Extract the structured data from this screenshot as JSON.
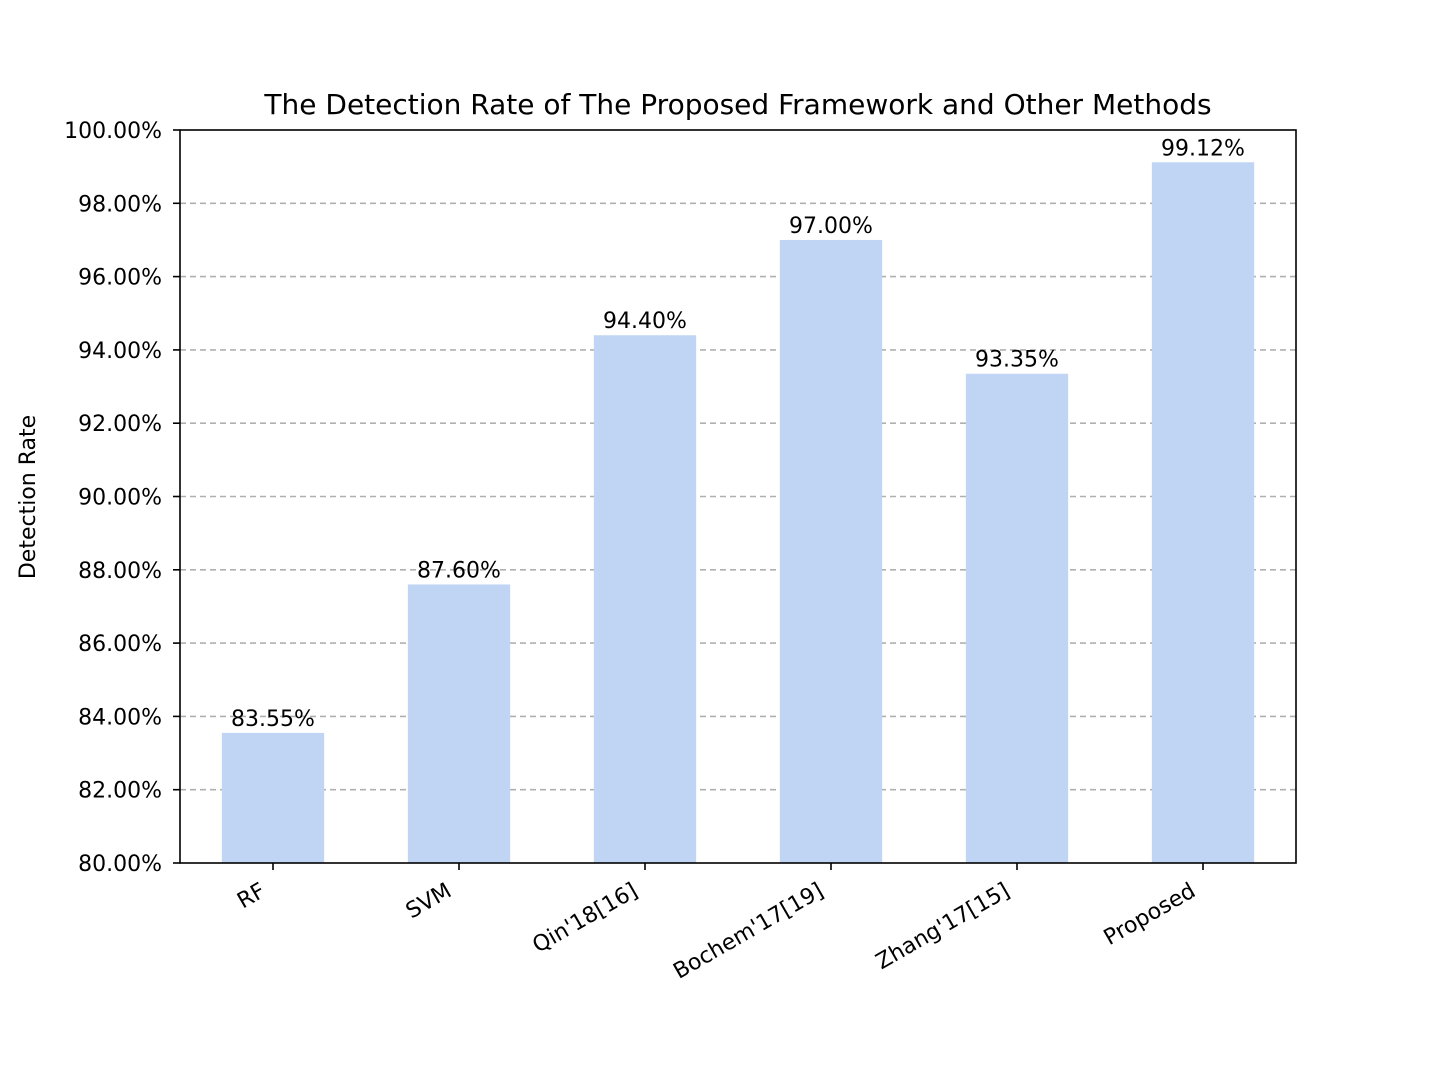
{
  "chart_data": {
    "type": "bar",
    "title": "The Detection Rate of The Proposed Framework and Other Methods",
    "xlabel": "",
    "ylabel": "Detection Rate",
    "categories": [
      "RF",
      "SVM",
      "Qin'18[16]",
      "Bochem'17[19]",
      "Zhang'17[15]",
      "Proposed"
    ],
    "values": [
      83.55,
      87.6,
      94.4,
      97.0,
      93.35,
      99.12
    ],
    "value_labels": [
      "83.55%",
      "87.60%",
      "94.40%",
      "97.00%",
      "93.35%",
      "99.12%"
    ],
    "ylim": [
      80,
      100
    ],
    "yticks": [
      80,
      82,
      84,
      86,
      88,
      90,
      92,
      94,
      96,
      98,
      100
    ],
    "ytick_labels": [
      "80.00%",
      "82.00%",
      "84.00%",
      "86.00%",
      "88.00%",
      "90.00%",
      "92.00%",
      "94.00%",
      "96.00%",
      "98.00%",
      "100.00%"
    ],
    "grid": "y, dashed",
    "bar_color": "#c0d5f4",
    "legend": "none"
  }
}
